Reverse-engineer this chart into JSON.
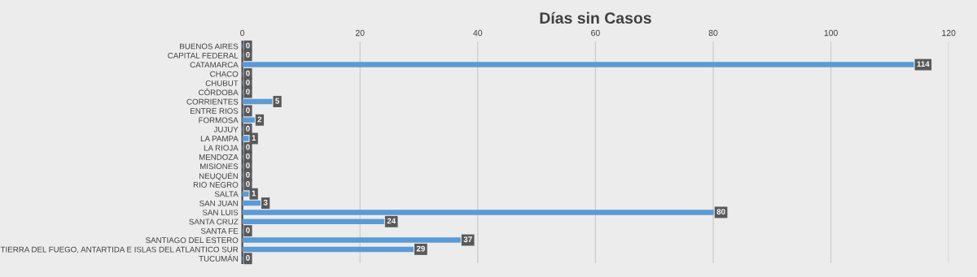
{
  "chart_data": {
    "type": "bar",
    "orientation": "horizontal",
    "title": "Días sin Casos",
    "categories": [
      "BUENOS AIRES",
      "CAPITAL FEDERAL",
      "CATAMARCA",
      "CHACO",
      "CHUBUT",
      "CÓRDOBA",
      "CORRIENTES",
      "ENTRE RIOS",
      "FORMOSA",
      "JUJUY",
      "LA PAMPA",
      "LA RIOJA",
      "MENDOZA",
      "MISIONES",
      "NEUQUÉN",
      "RIO NEGRO",
      "SALTA",
      "SAN JUAN",
      "SAN LUIS",
      "SANTA CRUZ",
      "SANTA FE",
      "SANTIAGO DEL ESTERO",
      "TIERRA DEL FUEGO, ANTARTIDA E ISLAS DEL ATLANTICO SUR",
      "TUCUMÁN"
    ],
    "values": [
      0,
      0,
      114,
      0,
      0,
      0,
      5,
      0,
      2,
      0,
      1,
      0,
      0,
      0,
      0,
      0,
      1,
      3,
      80,
      24,
      0,
      37,
      29,
      0
    ],
    "color": "#5b9bd5",
    "xlim": [
      0,
      120
    ],
    "xticks": [
      0,
      20,
      40,
      60,
      80,
      100,
      120
    ],
    "grid": "x",
    "data_labels": true
  }
}
